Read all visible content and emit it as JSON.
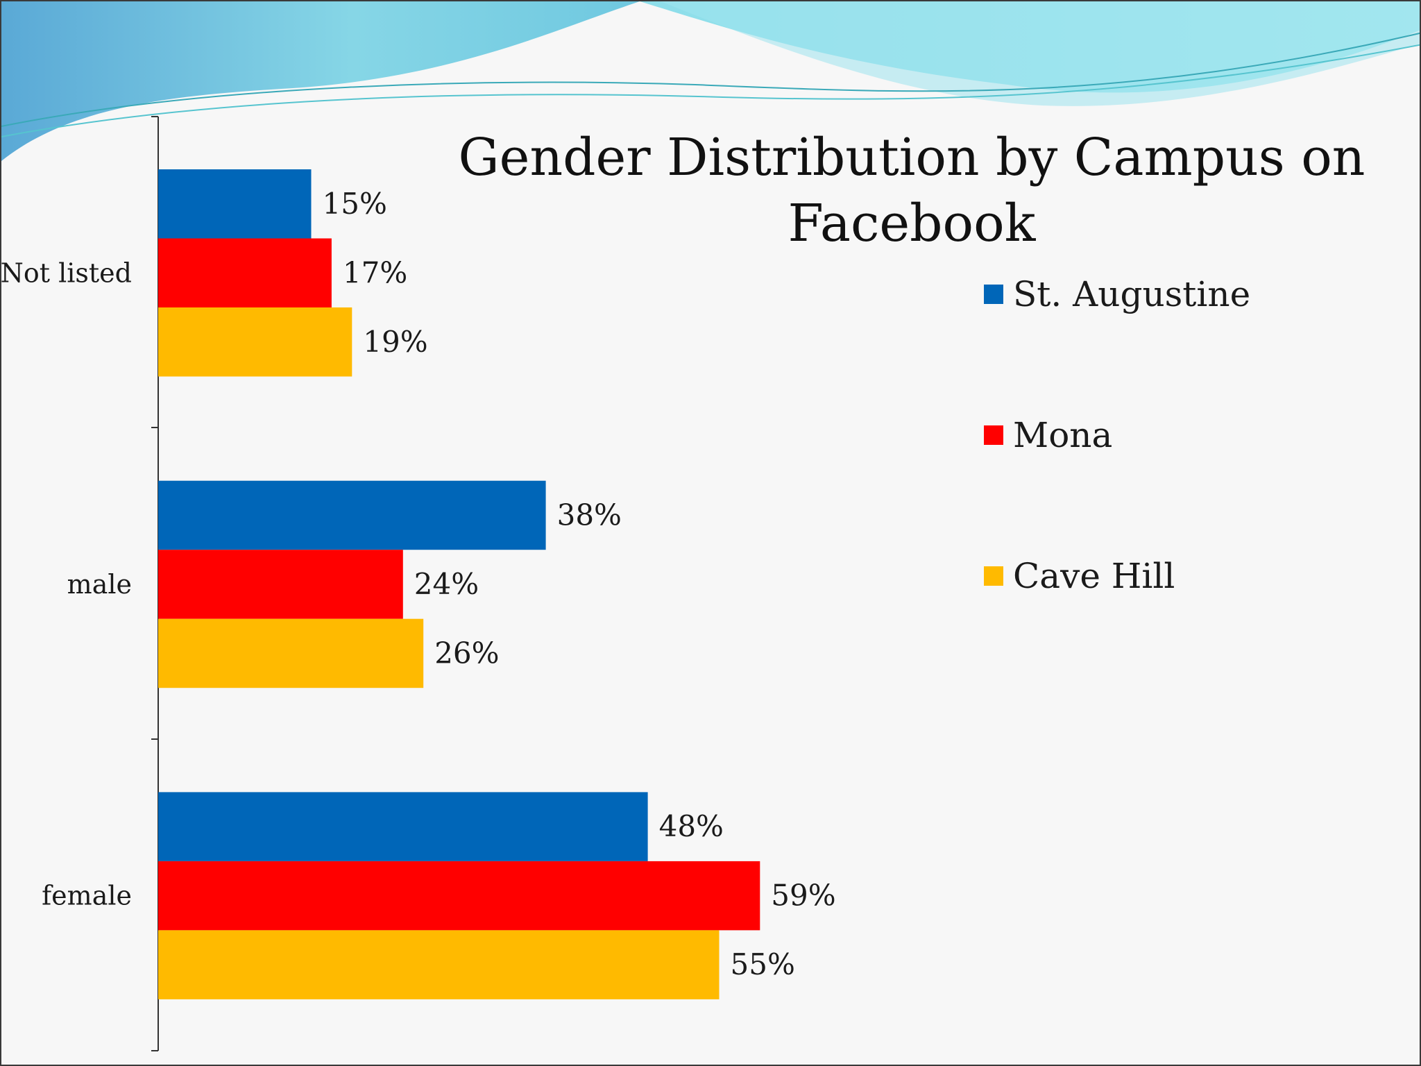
{
  "chart_data": {
    "type": "bar",
    "orientation": "horizontal",
    "title_lines": [
      "Gender Distribution by Campus on",
      "Facebook"
    ],
    "categories": [
      "Not listed",
      "male",
      "female"
    ],
    "series": [
      {
        "name": "St. Augustine",
        "color": "#0066b8",
        "values": [
          15,
          38,
          48
        ],
        "labels": [
          "15%",
          "38%",
          "48%"
        ]
      },
      {
        "name": "Mona",
        "color": "#ff0000",
        "values": [
          17,
          24,
          59
        ],
        "labels": [
          "17%",
          "24%",
          "59%"
        ]
      },
      {
        "name": "Cave Hill",
        "color": "#ffba00",
        "values": [
          19,
          26,
          55
        ],
        "labels": [
          "19%",
          "26%",
          "55%"
        ]
      }
    ],
    "value_format": "percent",
    "xlim": [
      0,
      65
    ],
    "gridlines": false,
    "legend_position": "right"
  },
  "colors": {
    "wave_dark": "#5fb6d8",
    "wave_light": "#8ee0e8",
    "background": "#f7f7f7"
  }
}
